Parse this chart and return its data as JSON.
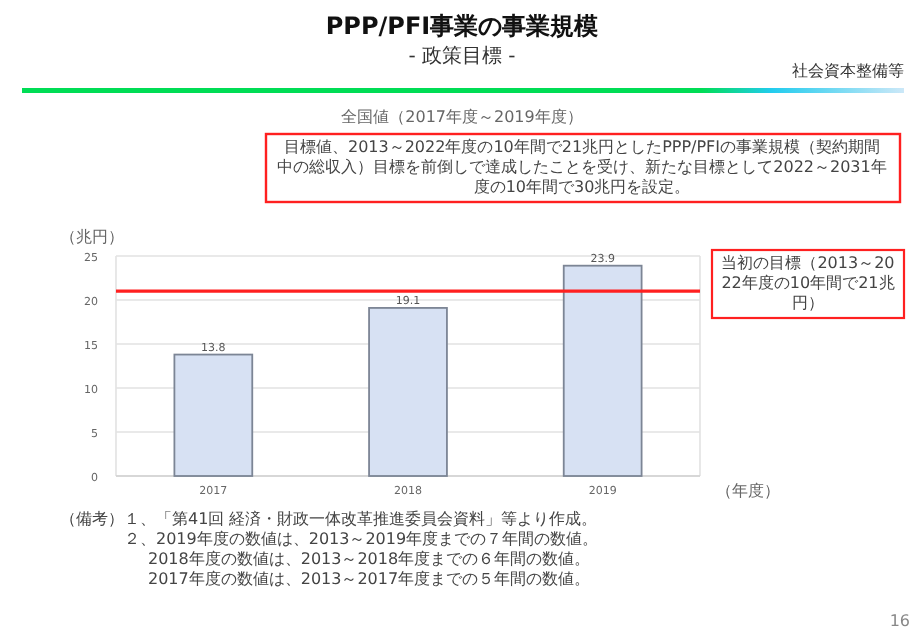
{
  "chart_data": {
    "type": "bar",
    "title": "PPP/PFI事業の事業規模",
    "subtitle": "- 政策目標 -",
    "categories": [
      "2017",
      "2018",
      "2019"
    ],
    "values": [
      13.8,
      19.1,
      23.9
    ],
    "color": "#d7e1f3",
    "ylim": [
      0,
      25
    ],
    "yticks": [
      0,
      5,
      10,
      15,
      20,
      25
    ],
    "grid": "y",
    "ylabel": "（兆円）",
    "xlabel": "（年度）",
    "data_labels": true,
    "ref_lines": [
      {
        "axis": "y",
        "value": 21,
        "label": "当初の目標（2013～2022年度の10年間で21兆円）",
        "color": "#ff2020"
      }
    ],
    "annotations": [
      "社会資本整備等",
      "全国値（2017年度～2019年度）",
      "目標値、2013～2022年度の10年間で21兆円としたPPP/PFIの事業規模（契約期間中の総収入）目標を前倒しで達成したことを受け、新たな目標として2022～2031年度の10年間で30兆円を設定。",
      "（備考）１、「第41回 経済・財政一体改革推進委員会資料」等より作成。",
      "２、2019年度の数値は、2013～2019年度までの７年間の数値。",
      "2018年度の数値は、2013～2018年度までの６年間の数値。",
      "2017年度の数値は、2013～2017年度までの５年間の数値。",
      "16"
    ]
  }
}
